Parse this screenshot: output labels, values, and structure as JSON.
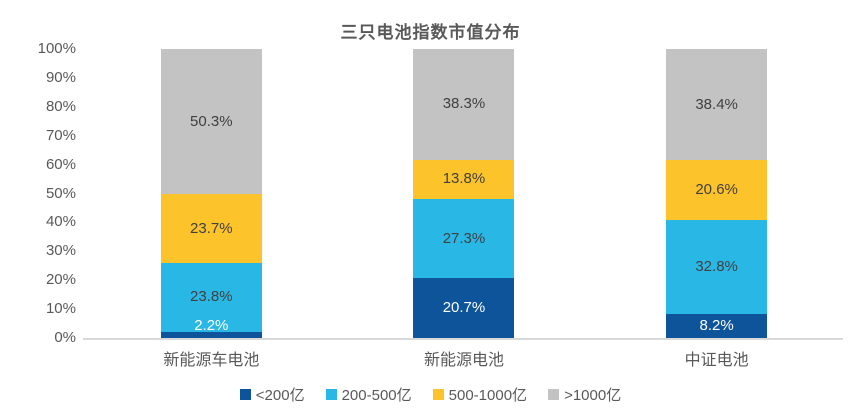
{
  "title": "三只电池指数市值分布",
  "chart_data": {
    "type": "bar",
    "stacked": true,
    "percent_stacked": true,
    "title": "三只电池指数市值分布",
    "categories": [
      "新能源车电池",
      "新能源电池",
      "中证电池"
    ],
    "series": [
      {
        "name": "<200亿",
        "color": "#0e549a",
        "label_color": "#ffffff",
        "values": [
          2.2,
          20.7,
          8.2
        ]
      },
      {
        "name": "200-500亿",
        "color": "#29b8e5",
        "label_color": "#404040",
        "values": [
          23.8,
          27.3,
          32.8
        ]
      },
      {
        "name": "500-1000亿",
        "color": "#fdc32a",
        "label_color": "#404040",
        "values": [
          23.7,
          13.8,
          20.6
        ]
      },
      {
        "name": ">1000亿",
        "color": "#c3c3c3",
        "label_color": "#404040",
        "values": [
          50.3,
          38.3,
          38.4
        ]
      }
    ],
    "y_ticks": [
      "100%",
      "90%",
      "80%",
      "70%",
      "60%",
      "50%",
      "40%",
      "30%",
      "20%",
      "10%",
      "0%"
    ],
    "ylim": [
      0,
      100
    ],
    "grid": false,
    "legend_position": "bottom",
    "axis_line_color": "#d9d9d9"
  }
}
